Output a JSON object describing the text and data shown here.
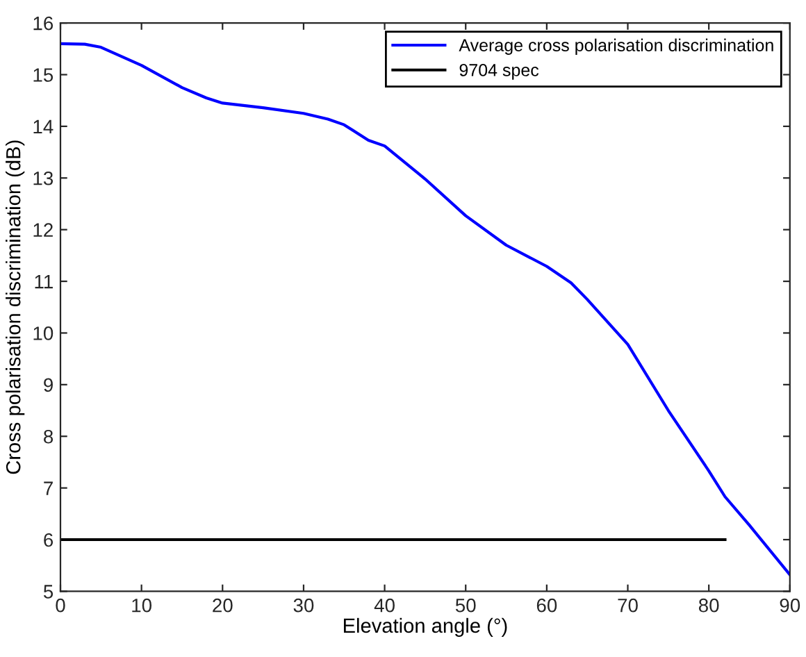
{
  "chart_data": {
    "type": "line",
    "xlabel": "Elevation angle (°)",
    "ylabel": "Cross polarisation discrimination (dB)",
    "xlim": [
      0,
      90
    ],
    "ylim": [
      5,
      16
    ],
    "xticks": [
      0,
      10,
      20,
      30,
      40,
      50,
      60,
      70,
      80,
      90
    ],
    "yticks": [
      5,
      6,
      7,
      8,
      9,
      10,
      11,
      12,
      13,
      14,
      15,
      16
    ],
    "grid": false,
    "legend": "top right",
    "line_style": "solid",
    "marker": "none",
    "series": [
      {
        "name": "Average cross polarisation discrimination",
        "color": "#0000ff",
        "x": [
          0,
          3,
          5,
          10,
          15,
          18,
          20,
          25,
          30,
          33,
          35,
          38,
          40,
          45,
          50,
          55,
          60,
          63,
          65,
          70,
          75,
          80,
          82,
          85,
          90
        ],
        "values": [
          15.6,
          15.59,
          15.53,
          15.18,
          14.75,
          14.55,
          14.45,
          14.36,
          14.25,
          14.14,
          14.03,
          13.73,
          13.62,
          12.98,
          12.27,
          11.7,
          11.29,
          10.97,
          10.65,
          9.78,
          8.5,
          7.33,
          6.83,
          6.28,
          5.32
        ]
      },
      {
        "name": "9704 spec",
        "color": "#000000",
        "x": [
          0,
          82
        ],
        "values": [
          6,
          6
        ]
      }
    ]
  }
}
